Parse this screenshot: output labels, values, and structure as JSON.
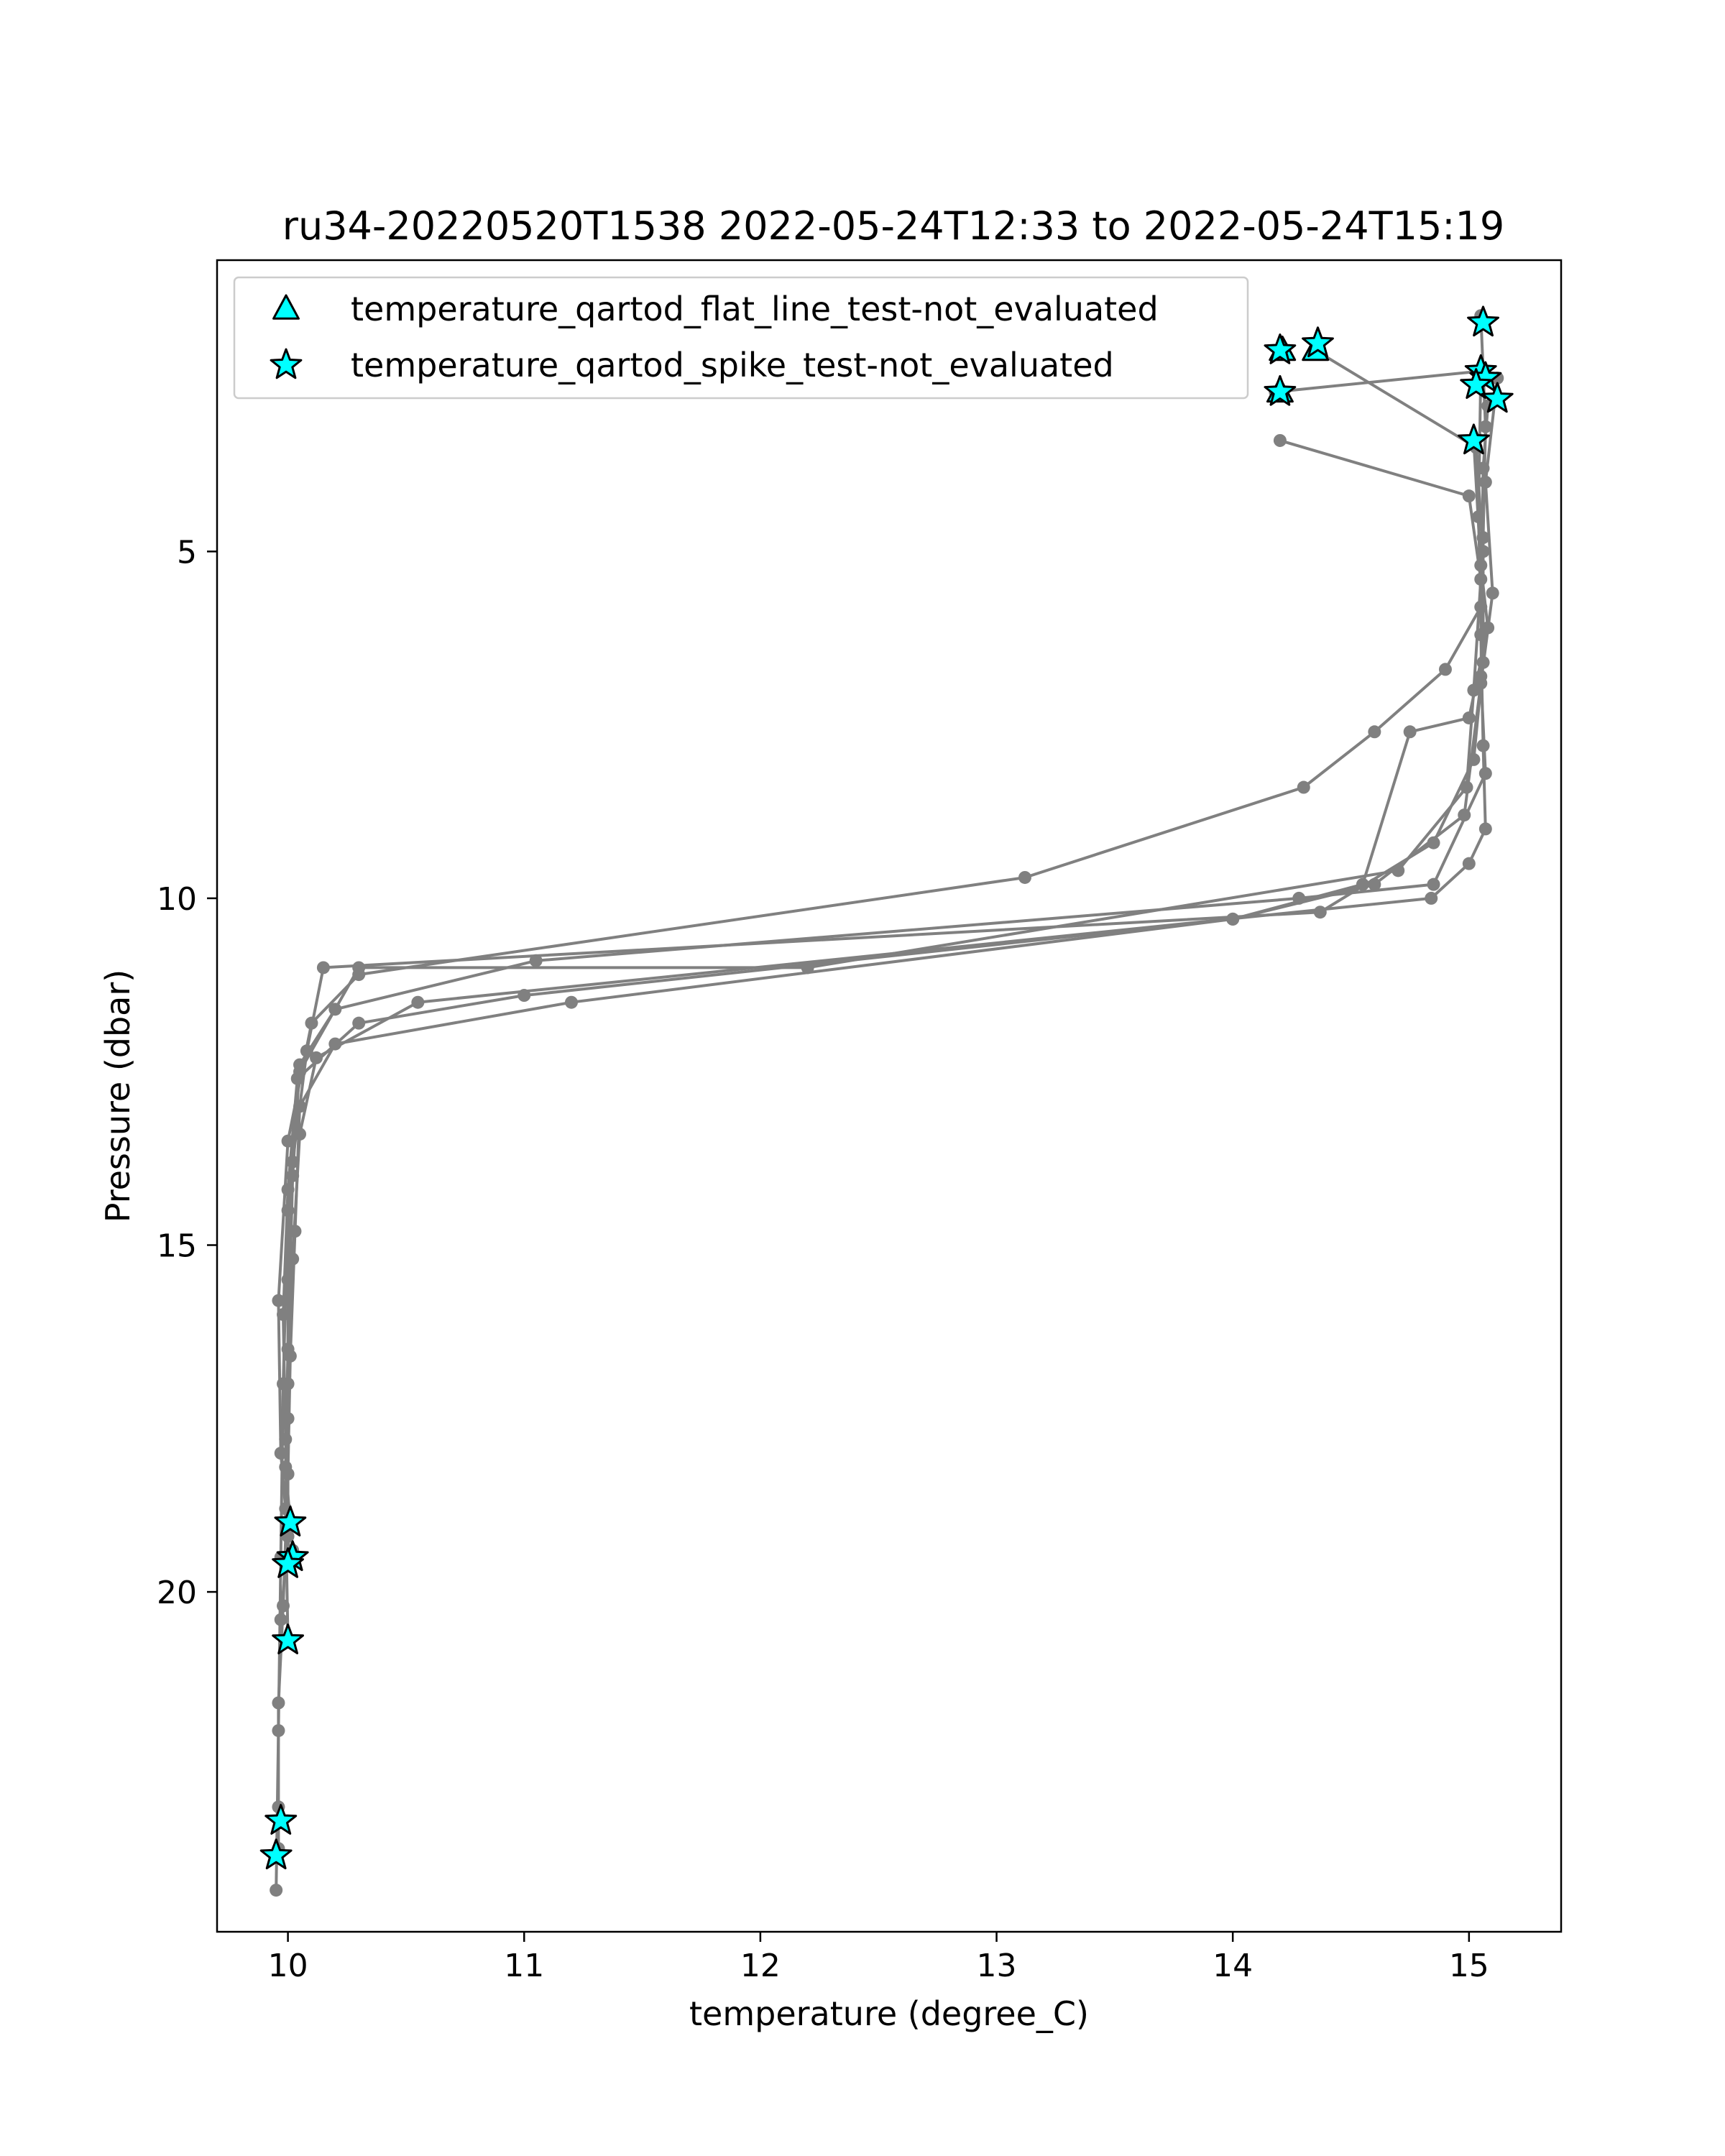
{
  "chart_data": {
    "type": "line",
    "title": "ru34-20220520T1538 2022-05-24T12:33 to 2022-05-24T15:19",
    "xlabel": "temperature (degree_C)",
    "ylabel": "Pressure (dbar)",
    "xlim": [
      9.7,
      15.39
    ],
    "ylim": [
      24.9,
      0.8
    ],
    "y_inverted": true,
    "x_ticks": [
      10,
      11,
      12,
      13,
      14,
      15
    ],
    "y_ticks": [
      5,
      10,
      15,
      20
    ],
    "grid": false,
    "legend_position": "top-left",
    "colors": {
      "line": "#808080",
      "marker_fill": "#00ffff",
      "marker_edge": "#000000"
    },
    "series": [
      {
        "name": "",
        "style": "line-dots",
        "profiles": [
          [
            [
              14.2,
              3.4
            ],
            [
              15.0,
              4.2
            ],
            [
              15.05,
              5.4
            ],
            [
              15.02,
              7.0
            ],
            [
              14.99,
              8.4
            ],
            [
              14.7,
              9.6
            ],
            [
              12.2,
              11.0
            ],
            [
              10.3,
              11.0
            ],
            [
              10.05,
              12.5
            ],
            [
              10.0,
              14.5
            ],
            [
              9.98,
              17.0
            ],
            [
              9.97,
              19.5
            ],
            [
              9.96,
              22.0
            ],
            [
              9.95,
              24.3
            ]
          ],
          [
            [
              14.35,
              2.1
            ],
            [
              15.03,
              3.5
            ],
            [
              15.06,
              5.0
            ],
            [
              15.05,
              6.8
            ],
            [
              15.07,
              8.2
            ],
            [
              14.85,
              9.8
            ],
            [
              14.28,
              10.0
            ],
            [
              11.05,
              10.9
            ],
            [
              10.2,
              11.6
            ],
            [
              10.05,
              12.4
            ],
            [
              10.02,
              14.0
            ],
            [
              10.0,
              16.5
            ],
            [
              9.99,
              18.2
            ],
            [
              10.02,
              19.4
            ]
          ],
          [
            [
              15.05,
              1.6
            ],
            [
              15.07,
              3.2
            ],
            [
              15.06,
              4.8
            ],
            [
              15.06,
              6.6
            ],
            [
              15.02,
              8.0
            ],
            [
              14.85,
              9.2
            ],
            [
              14.37,
              10.2
            ],
            [
              10.15,
              11.0
            ],
            [
              10.08,
              12.2
            ],
            [
              10.02,
              13.8
            ],
            [
              10.0,
              15.5
            ],
            [
              10.0,
              17.5
            ],
            [
              10.0,
              19.0
            ]
          ],
          [
            [
              14.18,
              2.7
            ],
            [
              15.05,
              2.4
            ],
            [
              15.04,
              4.5
            ],
            [
              15.05,
              5.8
            ],
            [
              14.9,
              6.7
            ],
            [
              14.6,
              7.6
            ],
            [
              14.3,
              8.4
            ],
            [
              13.12,
              9.7
            ],
            [
              10.3,
              11.1
            ],
            [
              10.1,
              11.8
            ],
            [
              10.0,
              13.5
            ],
            [
              9.96,
              15.8
            ],
            [
              9.97,
              18.0
            ],
            [
              10.01,
              19.6
            ]
          ],
          [
            [
              15.08,
              2.9
            ],
            [
              15.06,
              3.8
            ],
            [
              15.05,
              6.2
            ],
            [
              15.06,
              7.8
            ],
            [
              15.07,
              9.0
            ],
            [
              15.0,
              9.5
            ],
            [
              14.84,
              10.0
            ],
            [
              10.55,
              11.5
            ],
            [
              10.12,
              12.3
            ],
            [
              10.05,
              13.4
            ],
            [
              10.02,
              15.2
            ],
            [
              10.0,
              17.0
            ],
            [
              9.99,
              18.8
            ],
            [
              10.0,
              20.7
            ]
          ],
          [
            [
              15.12,
              2.5
            ],
            [
              15.07,
              4.0
            ],
            [
              15.1,
              5.6
            ],
            [
              15.05,
              6.9
            ],
            [
              14.98,
              8.8
            ],
            [
              14.6,
              9.8
            ],
            [
              14.0,
              10.3
            ],
            [
              11.2,
              11.5
            ],
            [
              10.2,
              12.1
            ],
            [
              10.05,
              13.0
            ],
            [
              10.03,
              14.8
            ],
            [
              10.01,
              16.6
            ],
            [
              10.0,
              18.3
            ],
            [
              9.98,
              20.2
            ],
            [
              9.96,
              21.6
            ],
            [
              9.96,
              23.1
            ],
            [
              9.96,
              23.7
            ]
          ],
          [
            [
              15.02,
              3.4
            ],
            [
              15.05,
              5.2
            ],
            [
              15.08,
              6.1
            ],
            [
              15.0,
              7.4
            ],
            [
              14.75,
              7.6
            ],
            [
              14.55,
              9.8
            ],
            [
              14.0,
              10.3
            ],
            [
              11.0,
              11.4
            ],
            [
              10.3,
              11.8
            ],
            [
              10.04,
              12.6
            ],
            [
              10.0,
              14.2
            ],
            [
              9.98,
              16.0
            ],
            [
              9.99,
              17.8
            ],
            [
              10.0,
              19.2
            ],
            [
              9.97,
              20.4
            ]
          ]
        ]
      },
      {
        "name": "temperature_qartod_flat_line_test-not_evaluated",
        "marker": "triangle",
        "points": [
          [
            14.2,
            2.7
          ],
          [
            14.21,
            2.1
          ],
          [
            14.35,
            2.1
          ]
        ]
      },
      {
        "name": "temperature_qartod_spike_test-not_evaluated",
        "marker": "star",
        "points": [
          [
            14.2,
            2.7
          ],
          [
            14.2,
            2.1
          ],
          [
            14.36,
            2.0
          ],
          [
            15.06,
            1.7
          ],
          [
            15.05,
            2.4
          ],
          [
            15.07,
            2.5
          ],
          [
            15.03,
            2.6
          ],
          [
            15.12,
            2.8
          ],
          [
            15.02,
            3.4
          ],
          [
            10.01,
            19.0
          ],
          [
            10.02,
            19.5
          ],
          [
            10.0,
            19.6
          ],
          [
            10.0,
            20.7
          ],
          [
            9.97,
            23.3
          ],
          [
            9.95,
            23.8
          ]
        ]
      }
    ]
  }
}
